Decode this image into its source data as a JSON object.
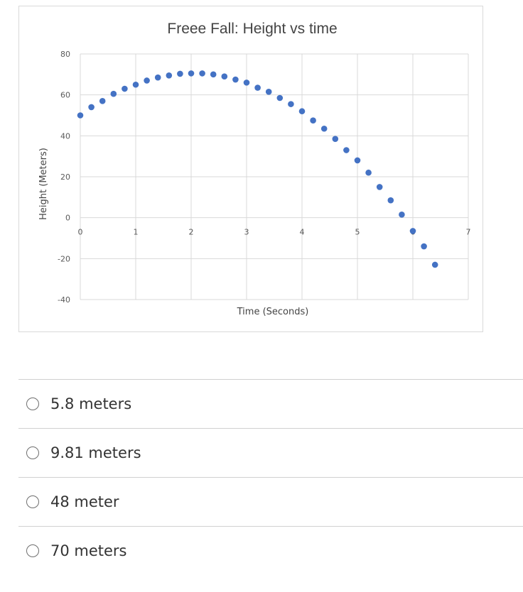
{
  "chart_data": {
    "type": "scatter",
    "title": "Freee Fall: Height vs time",
    "xlabel": "Time (Seconds)",
    "ylabel": "Height (Meters)",
    "xlim": [
      0,
      7
    ],
    "ylim": [
      -40,
      80
    ],
    "x_ticks": [
      "0",
      "1",
      "2",
      "3",
      "4",
      "5",
      "6",
      "7"
    ],
    "y_ticks": [
      "80",
      "60",
      "40",
      "20",
      "0",
      "-20",
      "-40"
    ],
    "grid": true,
    "marker_color": "#4472c4",
    "points": [
      {
        "x": 0.0,
        "y": 50
      },
      {
        "x": 0.2,
        "y": 54
      },
      {
        "x": 0.4,
        "y": 57
      },
      {
        "x": 0.6,
        "y": 60.5
      },
      {
        "x": 0.8,
        "y": 63
      },
      {
        "x": 1.0,
        "y": 65
      },
      {
        "x": 1.2,
        "y": 67
      },
      {
        "x": 1.4,
        "y": 68.5
      },
      {
        "x": 1.6,
        "y": 69.5
      },
      {
        "x": 1.8,
        "y": 70.3
      },
      {
        "x": 2.0,
        "y": 70.5
      },
      {
        "x": 2.2,
        "y": 70.5
      },
      {
        "x": 2.4,
        "y": 70
      },
      {
        "x": 2.6,
        "y": 69
      },
      {
        "x": 2.8,
        "y": 67.5
      },
      {
        "x": 3.0,
        "y": 66
      },
      {
        "x": 3.2,
        "y": 63.5
      },
      {
        "x": 3.4,
        "y": 61.5
      },
      {
        "x": 3.6,
        "y": 58.5
      },
      {
        "x": 3.8,
        "y": 55.5
      },
      {
        "x": 4.0,
        "y": 52
      },
      {
        "x": 4.2,
        "y": 47.5
      },
      {
        "x": 4.4,
        "y": 43.5
      },
      {
        "x": 4.6,
        "y": 38.5
      },
      {
        "x": 4.8,
        "y": 33
      },
      {
        "x": 5.0,
        "y": 28
      },
      {
        "x": 5.2,
        "y": 22
      },
      {
        "x": 5.4,
        "y": 15
      },
      {
        "x": 5.6,
        "y": 8.5
      },
      {
        "x": 5.8,
        "y": 1.5
      },
      {
        "x": 6.0,
        "y": -6.5
      },
      {
        "x": 6.2,
        "y": -14
      },
      {
        "x": 6.4,
        "y": -23
      }
    ]
  },
  "answer_options": [
    {
      "label": "5.8 meters"
    },
    {
      "label": "9.81 meters"
    },
    {
      "label": "48 meter"
    },
    {
      "label": "70 meters"
    }
  ]
}
